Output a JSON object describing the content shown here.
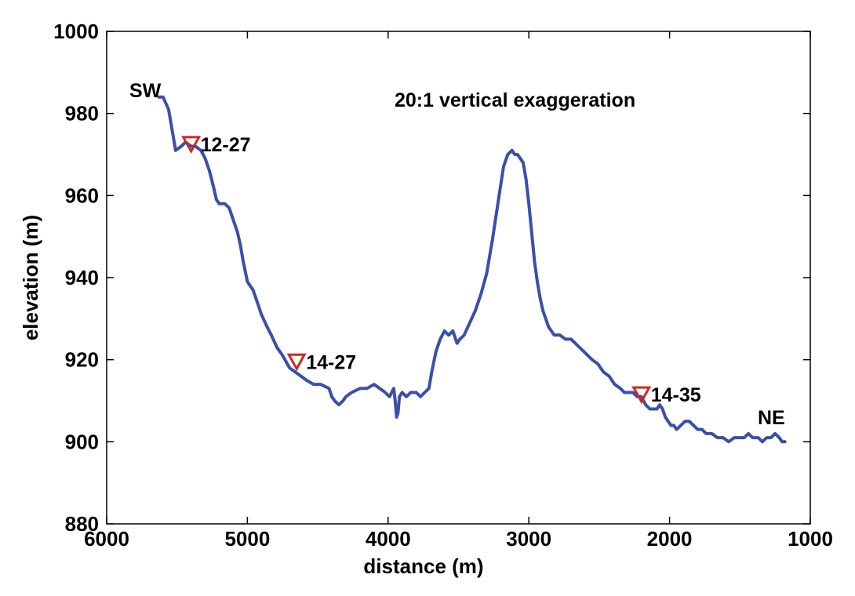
{
  "chart_data": {
    "type": "line",
    "xlabel": "distance (m)",
    "ylabel": "elevation (m)",
    "xlim": [
      6000,
      1000
    ],
    "ylim": [
      880,
      1000
    ],
    "x_reversed": true,
    "xticks": [
      6000,
      5000,
      4000,
      3000,
      2000,
      1000
    ],
    "yticks": [
      880,
      900,
      920,
      940,
      960,
      980,
      1000
    ],
    "grid": false,
    "annotations": {
      "left_end": "SW",
      "right_end": "NE",
      "exaggeration": "20:1 vertical exaggeration"
    },
    "colors": {
      "profile": "#3a4fa8",
      "marker": "#cc2a1f"
    },
    "series": [
      {
        "x": [
          5630,
          5600,
          5560,
          5530,
          5510,
          5470,
          5440,
          5400,
          5370,
          5330,
          5300,
          5270,
          5240,
          5220,
          5200,
          5160,
          5130,
          5100,
          5070,
          5050,
          5030,
          5000,
          4960,
          4930,
          4900,
          4860,
          4830,
          4790,
          4750,
          4700,
          4660,
          4620,
          4580,
          4530,
          4480,
          4420,
          4400,
          4380,
          4350,
          4320,
          4300,
          4260,
          4200,
          4150,
          4100,
          4060,
          4020,
          3990,
          3960,
          3950,
          3940,
          3930,
          3920,
          3900,
          3870,
          3840,
          3800,
          3770,
          3740,
          3710,
          3690,
          3660,
          3630,
          3600,
          3570,
          3540,
          3510,
          3490,
          3460,
          3420,
          3380,
          3340,
          3300,
          3260,
          3220,
          3180,
          3150,
          3120,
          3100,
          3080,
          3060,
          3040,
          3020,
          3000,
          2980,
          2960,
          2940,
          2920,
          2900,
          2880,
          2860,
          2840,
          2820,
          2780,
          2740,
          2700,
          2670,
          2640,
          2610,
          2580,
          2550,
          2510,
          2470,
          2430,
          2390,
          2350,
          2320,
          2290,
          2260,
          2230,
          2200,
          2170,
          2140,
          2110,
          2090,
          2070,
          2050,
          2030,
          2010,
          1990,
          1970,
          1950,
          1920,
          1890,
          1860,
          1830,
          1800,
          1770,
          1740,
          1700,
          1660,
          1620,
          1580,
          1540,
          1500,
          1470,
          1440,
          1410,
          1390,
          1370,
          1340,
          1310,
          1280,
          1250,
          1220,
          1200,
          1180
        ],
        "y": [
          984,
          984,
          981,
          975,
          971,
          972,
          973,
          972,
          972,
          971,
          969,
          966,
          962,
          959,
          958,
          958,
          957,
          954,
          951,
          948,
          944,
          939,
          937,
          934,
          931,
          928,
          926,
          923,
          921,
          918,
          917,
          916,
          915,
          914,
          914,
          913,
          911,
          910,
          909,
          910,
          911,
          912,
          913,
          913,
          914,
          913,
          912,
          911,
          913,
          910,
          906,
          907,
          911,
          912,
          911,
          912,
          912,
          911,
          912,
          913,
          917,
          922,
          925,
          927,
          926,
          927,
          924,
          925,
          926,
          929,
          932,
          936,
          941,
          949,
          958,
          967,
          970,
          971,
          970,
          970,
          969,
          968,
          964,
          958,
          951,
          944,
          939,
          935,
          932,
          930,
          928,
          927,
          926,
          926,
          925,
          925,
          924,
          923,
          922,
          921,
          920,
          919,
          917,
          916,
          914,
          913,
          912,
          912,
          912,
          911,
          911,
          909,
          908,
          908,
          908,
          909,
          908,
          906,
          905,
          904,
          904,
          903,
          904,
          905,
          905,
          904,
          903,
          903,
          902,
          902,
          901,
          901,
          900,
          901,
          901,
          901,
          902,
          901,
          901,
          901,
          900,
          901,
          901,
          902,
          901,
          900,
          900
        ]
      }
    ],
    "markers": [
      {
        "label": "12-27",
        "x": 5400,
        "y": 972.5
      },
      {
        "label": "14-27",
        "x": 4650,
        "y": 919.5
      },
      {
        "label": "14-35",
        "x": 2200,
        "y": 911.5
      }
    ]
  }
}
